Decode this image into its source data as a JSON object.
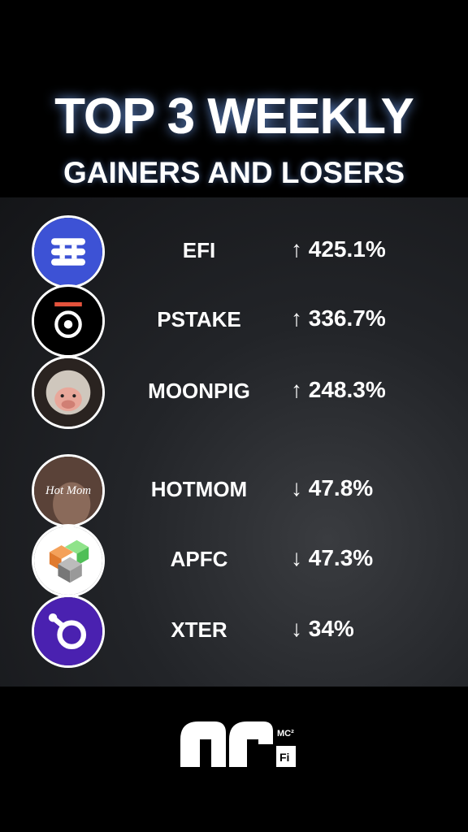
{
  "header": {
    "title": "TOP 3 WEEKLY",
    "subtitle": "GAINERS AND LOSERS"
  },
  "gainers": [
    {
      "name": "EFI",
      "change": "↑ 425.1%"
    },
    {
      "name": "PSTAKE",
      "change": "↑ 336.7%"
    },
    {
      "name": "MOONPIG",
      "change": "↑ 248.3%"
    }
  ],
  "losers": [
    {
      "name": "HOTMOM",
      "change": "↓ 47.8%",
      "icon_text": "Hot Mom"
    },
    {
      "name": "APFC",
      "change": "↓ 47.3%"
    },
    {
      "name": "XTER",
      "change": "↓ 34%"
    }
  ],
  "logo": {
    "superscript": "MC²",
    "badge": "Fi"
  }
}
